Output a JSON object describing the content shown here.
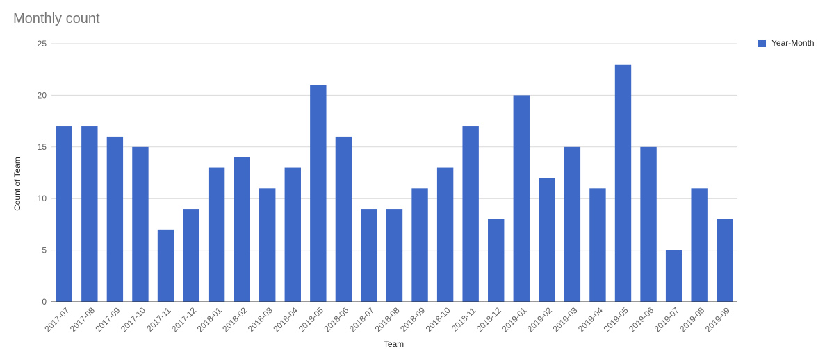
{
  "chart_data": {
    "type": "bar",
    "title": "Monthly count",
    "xlabel": "Team",
    "ylabel": "Count of Team",
    "ylim": [
      0,
      25
    ],
    "yticks": [
      0,
      5,
      10,
      15,
      20,
      25
    ],
    "grid": true,
    "legend_position": "right",
    "categories": [
      "2017-07",
      "2017-08",
      "2017-09",
      "2017-10",
      "2017-11",
      "2017-12",
      "2018-01",
      "2018-02",
      "2018-03",
      "2018-04",
      "2018-05",
      "2018-06",
      "2018-07",
      "2018-08",
      "2018-09",
      "2018-10",
      "2018-11",
      "2018-12",
      "2019-01",
      "2019-02",
      "2019-03",
      "2019-04",
      "2019-05",
      "2019-06",
      "2019-07",
      "2019-08",
      "2019-09"
    ],
    "series": [
      {
        "name": "Year-Month",
        "color": "#3f69c6",
        "values": [
          17,
          17,
          16,
          15,
          7,
          9,
          13,
          14,
          11,
          13,
          21,
          16,
          9,
          9,
          11,
          13,
          17,
          8,
          20,
          12,
          15,
          11,
          23,
          15,
          5,
          11,
          8
        ]
      }
    ]
  }
}
